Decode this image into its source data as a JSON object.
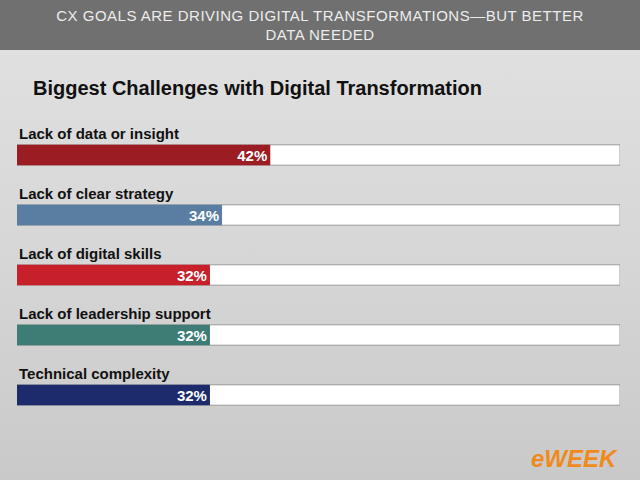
{
  "chart_data": {
    "type": "bar",
    "subtitle": "CX GOALS ARE DRIVING DIGITAL TRANSFORMATIONS—BUT BETTER DATA NEEDED",
    "title": "Biggest Challenges with Digital Transformation",
    "orientation": "horizontal",
    "categories": [
      "Lack of data or insight",
      "Lack of clear strategy",
      "Lack of digital skills",
      "Lack of leadership support",
      "Technical complexity"
    ],
    "values": [
      42,
      34,
      32,
      32,
      32
    ],
    "value_labels": [
      "42%",
      "34%",
      "32%",
      "32%",
      "32%"
    ],
    "data_labels": true,
    "colors": [
      "#9b1c22",
      "#5a7ea2",
      "#c8202b",
      "#3d7d76",
      "#1d2a6b"
    ],
    "xlim": [
      0,
      100
    ],
    "xticks": [],
    "tick_labels": false,
    "grid": false,
    "annotations": [
      "eWEEK"
    ]
  }
}
